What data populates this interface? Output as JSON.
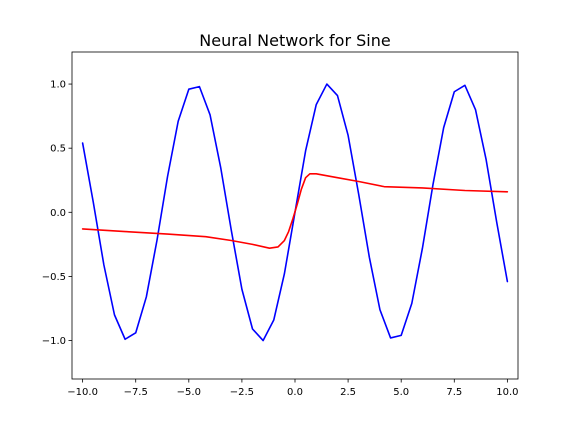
{
  "chart_data": {
    "type": "line",
    "title": "Neural Network for Sine",
    "xlabel": "",
    "ylabel": "",
    "xlim": [
      -10.5,
      10.5
    ],
    "ylim": [
      -1.3,
      1.25
    ],
    "grid": false,
    "xticks": [
      -10.0,
      -7.5,
      -5.0,
      -2.5,
      0.0,
      2.5,
      5.0,
      7.5,
      10.0
    ],
    "xtick_labels": [
      "−10.0",
      "−7.5",
      "−5.0",
      "−2.5",
      "0.0",
      "2.5",
      "5.0",
      "7.5",
      "10.0"
    ],
    "yticks": [
      1.0,
      0.5,
      0.0,
      -0.5,
      -1.0
    ],
    "ytick_labels": [
      "1.0",
      "0.5",
      "0.0",
      "−0.5",
      "−1.0"
    ],
    "series": [
      {
        "color": "#0000ff",
        "x": [
          -10.0,
          -9.5,
          -9.0,
          -8.5,
          -8.0,
          -7.5,
          -7.0,
          -6.5,
          -6.0,
          -5.5,
          -5.0,
          -4.5,
          -4.0,
          -3.5,
          -3.0,
          -2.5,
          -2.0,
          -1.5,
          -1.0,
          -0.5,
          0.0,
          0.5,
          1.0,
          1.5,
          2.0,
          2.5,
          3.0,
          3.5,
          4.0,
          4.5,
          5.0,
          5.5,
          6.0,
          6.5,
          7.0,
          7.5,
          8.0,
          8.5,
          9.0,
          9.5,
          10.0
        ],
        "y": [
          0.54,
          0.08,
          -0.41,
          -0.8,
          -0.99,
          -0.94,
          -0.66,
          -0.22,
          0.28,
          0.71,
          0.96,
          0.98,
          0.76,
          0.35,
          -0.14,
          -0.6,
          -0.91,
          -1.0,
          -0.84,
          -0.48,
          0.0,
          0.48,
          0.84,
          1.0,
          0.91,
          0.6,
          0.14,
          -0.35,
          -0.76,
          -0.98,
          -0.96,
          -0.71,
          -0.28,
          0.22,
          0.66,
          0.94,
          0.99,
          0.8,
          0.41,
          -0.08,
          -0.54
        ]
      },
      {
        "color": "#ff0000",
        "x": [
          -10.0,
          -8.0,
          -6.0,
          -4.2,
          -3.0,
          -2.0,
          -1.2,
          -0.8,
          -0.5,
          -0.3,
          -0.1,
          0.1,
          0.3,
          0.5,
          0.7,
          1.0,
          2.0,
          3.0,
          4.2,
          6.0,
          8.0,
          10.0
        ],
        "y": [
          -0.13,
          -0.15,
          -0.17,
          -0.19,
          -0.22,
          -0.25,
          -0.28,
          -0.27,
          -0.22,
          -0.15,
          -0.05,
          0.06,
          0.18,
          0.27,
          0.3,
          0.3,
          0.27,
          0.24,
          0.2,
          0.19,
          0.17,
          0.16
        ]
      }
    ]
  }
}
